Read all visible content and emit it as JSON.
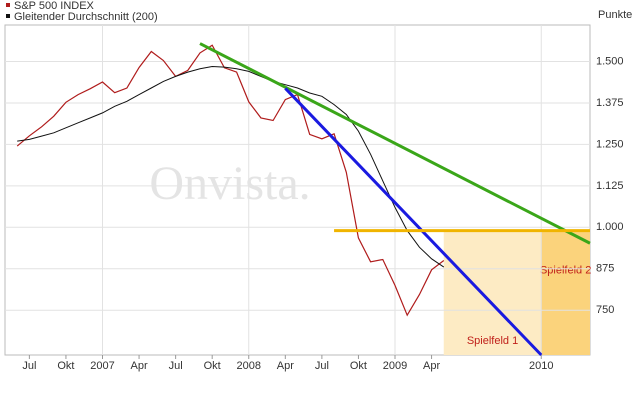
{
  "chart_data": {
    "type": "line",
    "y_axis_label": "Punkte",
    "watermark": "Onvista.",
    "xlim": [
      "2006-05",
      "2010-05"
    ],
    "xticks": [
      {
        "value": "2006-07",
        "label": "Jul"
      },
      {
        "value": "2006-10",
        "label": "Okt"
      },
      {
        "value": "2007-01",
        "label": "2007"
      },
      {
        "value": "2007-04",
        "label": "Apr"
      },
      {
        "value": "2007-07",
        "label": "Jul"
      },
      {
        "value": "2007-10",
        "label": "Okt"
      },
      {
        "value": "2008-01",
        "label": "2008"
      },
      {
        "value": "2008-04",
        "label": "Apr"
      },
      {
        "value": "2008-07",
        "label": "Jul"
      },
      {
        "value": "2008-10",
        "label": "Okt"
      },
      {
        "value": "2009-01",
        "label": "2009"
      },
      {
        "value": "2009-04",
        "label": "Apr"
      },
      {
        "value": "2010-01",
        "label": "2010"
      }
    ],
    "ylim": [
      615,
      1610
    ],
    "yticks": [
      {
        "value": 1500,
        "label": "1.500"
      },
      {
        "value": 1375,
        "label": "1.375"
      },
      {
        "value": 1250,
        "label": "1.250"
      },
      {
        "value": 1125,
        "label": "1.125"
      },
      {
        "value": 1000,
        "label": "1.000"
      },
      875,
      750
    ],
    "grid": true,
    "x": [
      "2006-06",
      "2006-07",
      "2006-08",
      "2006-09",
      "2006-10",
      "2006-11",
      "2006-12",
      "2007-01",
      "2007-02",
      "2007-03",
      "2007-04",
      "2007-05",
      "2007-06",
      "2007-07",
      "2007-08",
      "2007-09",
      "2007-10",
      "2007-11",
      "2007-12",
      "2008-01",
      "2008-02",
      "2008-03",
      "2008-04",
      "2008-05",
      "2008-06",
      "2008-07",
      "2008-08",
      "2008-09",
      "2008-10",
      "2008-11",
      "2008-12",
      "2009-01",
      "2009-02",
      "2009-03",
      "2009-04",
      "2009-05"
    ],
    "series": [
      {
        "name": "S&P 500 INDEX",
        "color": "#b01c1c",
        "width": 1.2,
        "values": [
          1245,
          1276,
          1303,
          1335,
          1377,
          1400,
          1418,
          1438,
          1406,
          1420,
          1482,
          1530,
          1503,
          1455,
          1473,
          1526,
          1549,
          1481,
          1468,
          1378,
          1330,
          1322,
          1385,
          1400,
          1280,
          1267,
          1282,
          1166,
          968,
          896,
          903,
          825,
          735,
          797,
          872,
          900
        ]
      },
      {
        "name": "Gleitender Durchschnitt (200)",
        "color": "#111111",
        "width": 1,
        "values": [
          1260,
          1265,
          1275,
          1285,
          1300,
          1315,
          1330,
          1345,
          1365,
          1380,
          1400,
          1420,
          1440,
          1455,
          1468,
          1478,
          1485,
          1483,
          1478,
          1470,
          1455,
          1440,
          1430,
          1420,
          1405,
          1395,
          1370,
          1340,
          1290,
          1220,
          1140,
          1060,
          990,
          940,
          905,
          880
        ]
      }
    ],
    "trend_lines": [
      {
        "color": "#3aa619",
        "x": [
          "2007-09",
          "2010-05"
        ],
        "values": [
          1554,
          952
        ]
      },
      {
        "color": "#1a1ae0",
        "x": [
          "2008-04",
          "2010-01"
        ],
        "values": [
          1419,
          615
        ]
      },
      {
        "color": "#f0b400",
        "x": [
          "2008-08",
          "2010-05"
        ],
        "values": [
          990,
          990
        ]
      }
    ],
    "regions": [
      {
        "label": "Spielfeld 1",
        "color": "#fdebc4",
        "x": [
          "2009-05",
          "2010-01"
        ],
        "top": 990
      },
      {
        "label": "Spielfeld 2",
        "color": "#fbd37c",
        "x": [
          "2010-01",
          "2010-05"
        ],
        "top": 990
      }
    ]
  }
}
